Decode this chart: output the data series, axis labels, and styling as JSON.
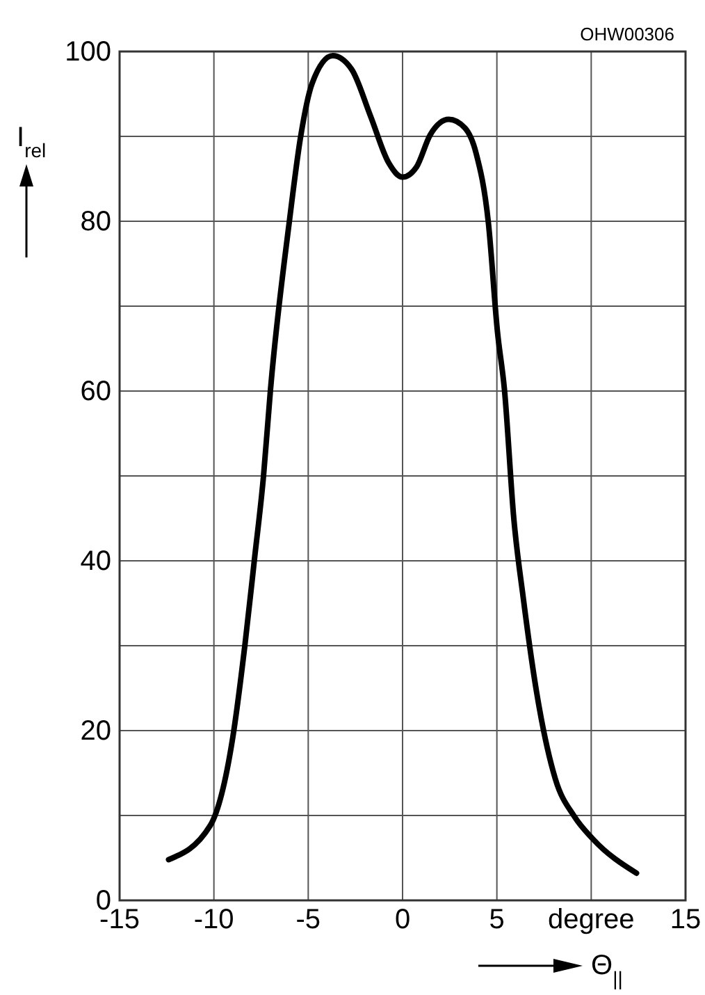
{
  "chart_data": {
    "type": "line",
    "xlabel": "Θ$_{||}$",
    "ylabel": "I$_{rel}$",
    "annotations": [
      "OHW00306"
    ],
    "xlim": [
      -15,
      15
    ],
    "xticks": [
      -15,
      -10,
      -5,
      0,
      5,
      {
        "value": 10,
        "label": "degree"
      },
      15
    ],
    "ylim": [
      0,
      100
    ],
    "yticks": [
      0,
      {
        "value": 10,
        "label": null
      },
      20,
      {
        "value": 30,
        "label": null
      },
      40,
      {
        "value": 50,
        "label": null
      },
      60,
      {
        "value": 70,
        "label": null
      },
      80,
      {
        "value": 90,
        "label": null
      },
      100
    ],
    "grid": true,
    "marker": "none",
    "line_style": "solid",
    "series": [
      {
        "color": "#000000",
        "x": [
          -12.4,
          -10.2,
          -9.0,
          -8.35,
          -7.86,
          -7.37,
          -7.0,
          -6.0,
          -5.4,
          -4.8,
          -3.7,
          -2.7,
          -1.7,
          -0.74,
          0,
          0.74,
          1.47,
          2.45,
          3.3,
          3.9,
          4.55,
          5.03,
          5.4,
          5.9,
          6.4,
          7.1,
          8.1,
          9.1,
          10.1,
          12.4
        ],
        "values": [
          4.8,
          8.8,
          19.2,
          30.2,
          40,
          50,
          60.2,
          80,
          90,
          96.2,
          99.5,
          97.9,
          92.4,
          86.9,
          85.2,
          86.4,
          90.2,
          92,
          91,
          88,
          79.8,
          67,
          60.2,
          44.9,
          35.6,
          24.6,
          14.3,
          9.9,
          7.2,
          3.2
        ]
      }
    ]
  }
}
